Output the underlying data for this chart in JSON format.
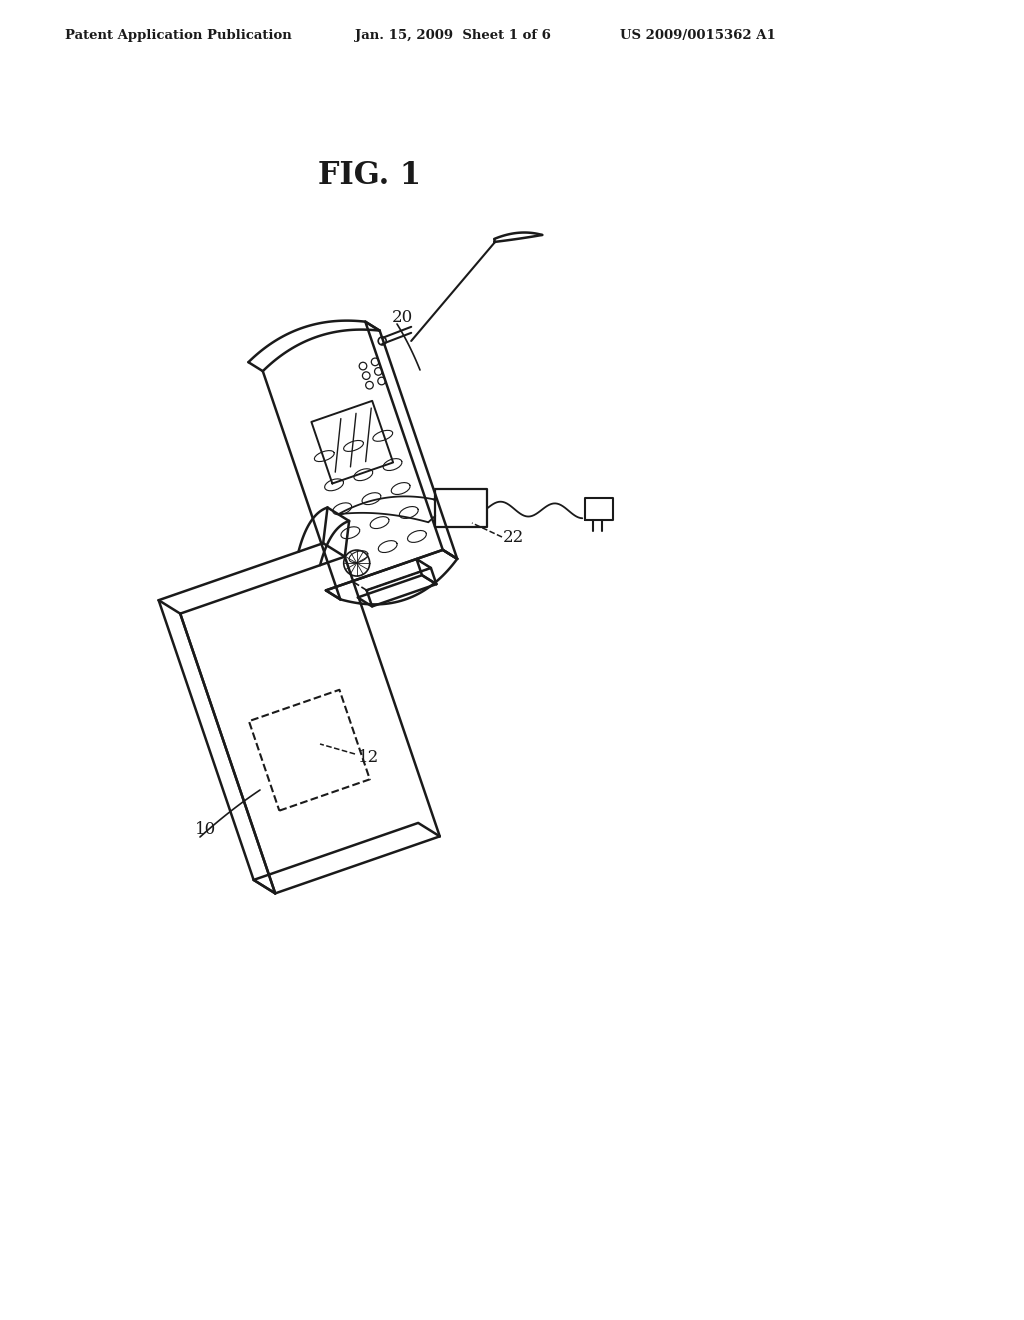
{
  "bg_color": "#ffffff",
  "line_color": "#1a1a1a",
  "header_left": "Patent Application Publication",
  "header_mid": "Jan. 15, 2009  Sheet 1 of 6",
  "header_right": "US 2009/0015362 A1",
  "fig_label": "FIG. 1",
  "label_20": "20",
  "label_22": "22",
  "label_10": "10",
  "label_12": "12"
}
